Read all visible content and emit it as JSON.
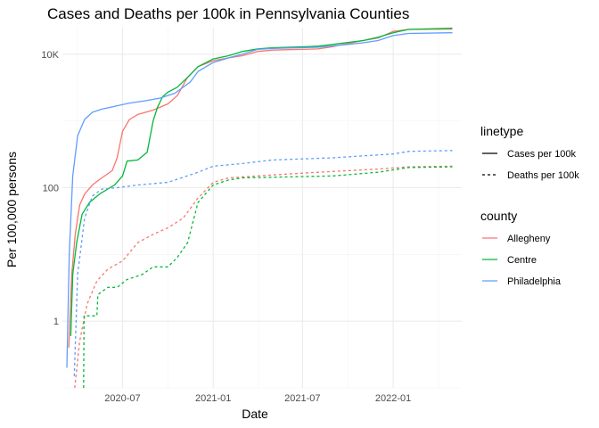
{
  "chart_data": {
    "type": "line",
    "title": "Cases and Deaths per 100k in Pennsylvania Counties",
    "xlabel": "Date",
    "ylabel": "Per 100,000 persons",
    "y_scale": "log10",
    "ylim": [
      0.1,
      25000
    ],
    "xlim": [
      "2020-03-01",
      "2022-05-20"
    ],
    "x_ticks": [
      {
        "date": "2020-07-01",
        "label": "2020-07"
      },
      {
        "date": "2021-01-01",
        "label": "2021-01"
      },
      {
        "date": "2021-07-01",
        "label": "2021-07"
      },
      {
        "date": "2022-01-01",
        "label": "2022-01"
      }
    ],
    "y_ticks": [
      {
        "value": 1,
        "label": "1"
      },
      {
        "value": 100,
        "label": "100"
      },
      {
        "value": 10000,
        "label": "10K"
      }
    ],
    "grid": true,
    "legend_position": "right",
    "legends": [
      {
        "title": "linetype",
        "items": [
          {
            "label": "Cases per 100k",
            "dash": "solid"
          },
          {
            "label": "Deaths per 100k",
            "dash": "dashed"
          }
        ]
      },
      {
        "title": "county",
        "items": [
          {
            "label": "Allegheny",
            "color": "#F8766D"
          },
          {
            "label": "Centre",
            "color": "#00BA38"
          },
          {
            "label": "Philadelphia",
            "color": "#619CFF"
          }
        ]
      }
    ],
    "series": [
      {
        "county": "Allegheny",
        "measure": "Cases per 100k",
        "color": "#F8766D",
        "dash": "solid",
        "points": [
          [
            "2020-03-14",
            0.4
          ],
          [
            "2020-03-20",
            5
          ],
          [
            "2020-03-27",
            20
          ],
          [
            "2020-04-05",
            55
          ],
          [
            "2020-04-15",
            80
          ],
          [
            "2020-05-01",
            110
          ],
          [
            "2020-05-20",
            140
          ],
          [
            "2020-06-10",
            180
          ],
          [
            "2020-06-20",
            280
          ],
          [
            "2020-07-01",
            700
          ],
          [
            "2020-07-15",
            1050
          ],
          [
            "2020-08-01",
            1250
          ],
          [
            "2020-09-01",
            1450
          ],
          [
            "2020-10-01",
            1800
          ],
          [
            "2020-10-20",
            2400
          ],
          [
            "2020-11-10",
            4500
          ],
          [
            "2020-12-01",
            6500
          ],
          [
            "2021-01-01",
            8000
          ],
          [
            "2021-02-01",
            8800
          ],
          [
            "2021-03-01",
            9500
          ],
          [
            "2021-04-01",
            11000
          ],
          [
            "2021-05-01",
            11500
          ],
          [
            "2021-06-01",
            11700
          ],
          [
            "2021-07-01",
            11800
          ],
          [
            "2021-08-01",
            12000
          ],
          [
            "2021-09-01",
            13000
          ],
          [
            "2021-10-01",
            14500
          ],
          [
            "2021-11-01",
            16000
          ],
          [
            "2021-12-01",
            17500
          ],
          [
            "2022-01-01",
            22000
          ],
          [
            "2022-02-01",
            23500
          ],
          [
            "2022-05-01",
            23800
          ]
        ]
      },
      {
        "county": "Centre",
        "measure": "Cases per 100k",
        "color": "#00BA38",
        "dash": "solid",
        "points": [
          [
            "2020-03-18",
            0.6
          ],
          [
            "2020-03-22",
            5
          ],
          [
            "2020-03-30",
            15
          ],
          [
            "2020-04-10",
            40
          ],
          [
            "2020-04-25",
            60
          ],
          [
            "2020-05-15",
            80
          ],
          [
            "2020-06-15",
            110
          ],
          [
            "2020-07-01",
            150
          ],
          [
            "2020-07-10",
            250
          ],
          [
            "2020-08-01",
            260
          ],
          [
            "2020-08-20",
            340
          ],
          [
            "2020-09-01",
            1000
          ],
          [
            "2020-09-10",
            1600
          ],
          [
            "2020-09-20",
            2300
          ],
          [
            "2020-10-01",
            2700
          ],
          [
            "2020-10-20",
            3200
          ],
          [
            "2020-11-10",
            4500
          ],
          [
            "2020-12-01",
            6500
          ],
          [
            "2021-01-01",
            8500
          ],
          [
            "2021-02-01",
            9500
          ],
          [
            "2021-03-01",
            11000
          ],
          [
            "2021-04-01",
            12000
          ],
          [
            "2021-05-01",
            12500
          ],
          [
            "2021-06-01",
            12700
          ],
          [
            "2021-07-01",
            12900
          ],
          [
            "2021-08-01",
            13200
          ],
          [
            "2021-09-01",
            14000
          ],
          [
            "2021-10-01",
            15000
          ],
          [
            "2021-11-01",
            16000
          ],
          [
            "2021-12-01",
            18000
          ],
          [
            "2022-01-01",
            21000
          ],
          [
            "2022-02-01",
            23500
          ],
          [
            "2022-05-01",
            24500
          ]
        ]
      },
      {
        "county": "Philadelphia",
        "measure": "Cases per 100k",
        "color": "#619CFF",
        "dash": "solid",
        "points": [
          [
            "2020-03-10",
            0.2
          ],
          [
            "2020-03-15",
            10
          ],
          [
            "2020-03-22",
            150
          ],
          [
            "2020-04-01",
            600
          ],
          [
            "2020-04-15",
            1050
          ],
          [
            "2020-05-01",
            1350
          ],
          [
            "2020-05-20",
            1500
          ],
          [
            "2020-06-15",
            1650
          ],
          [
            "2020-07-15",
            1850
          ],
          [
            "2020-08-15",
            2000
          ],
          [
            "2020-09-15",
            2200
          ],
          [
            "2020-10-15",
            2600
          ],
          [
            "2020-11-15",
            3800
          ],
          [
            "2020-12-01",
            5500
          ],
          [
            "2021-01-01",
            7500
          ],
          [
            "2021-02-01",
            8800
          ],
          [
            "2021-03-01",
            10000
          ],
          [
            "2021-04-01",
            11800
          ],
          [
            "2021-05-01",
            12200
          ],
          [
            "2021-06-01",
            12400
          ],
          [
            "2021-07-01",
            12500
          ],
          [
            "2021-08-01",
            12700
          ],
          [
            "2021-09-01",
            13300
          ],
          [
            "2021-10-01",
            14000
          ],
          [
            "2021-11-01",
            14800
          ],
          [
            "2021-12-01",
            16000
          ],
          [
            "2022-01-01",
            19000
          ],
          [
            "2022-02-01",
            20500
          ],
          [
            "2022-05-01",
            21000
          ]
        ]
      },
      {
        "county": "Allegheny",
        "measure": "Deaths per 100k",
        "color": "#F8766D",
        "dash": "dashed",
        "points": [
          [
            "2020-03-26",
            0.1
          ],
          [
            "2020-04-05",
            0.5
          ],
          [
            "2020-04-20",
            1.8
          ],
          [
            "2020-05-10",
            4
          ],
          [
            "2020-06-01",
            6
          ],
          [
            "2020-07-01",
            8
          ],
          [
            "2020-08-01",
            15
          ],
          [
            "2020-09-01",
            20
          ],
          [
            "2020-10-01",
            25
          ],
          [
            "2020-11-01",
            35
          ],
          [
            "2020-12-01",
            70
          ],
          [
            "2021-01-01",
            120
          ],
          [
            "2021-02-01",
            140
          ],
          [
            "2021-04-01",
            150
          ],
          [
            "2021-06-01",
            160
          ],
          [
            "2021-08-01",
            170
          ],
          [
            "2021-10-01",
            180
          ],
          [
            "2021-12-01",
            190
          ],
          [
            "2022-02-01",
            205
          ],
          [
            "2022-05-01",
            210
          ]
        ]
      },
      {
        "county": "Centre",
        "measure": "Deaths per 100k",
        "color": "#00BA38",
        "dash": "dashed",
        "points": [
          [
            "2020-04-13",
            0.1
          ],
          [
            "2020-04-14",
            1.2
          ],
          [
            "2020-05-10",
            1.2
          ],
          [
            "2020-05-12",
            2.5
          ],
          [
            "2020-06-01",
            3.2
          ],
          [
            "2020-06-20",
            3.2
          ],
          [
            "2020-07-10",
            4.2
          ],
          [
            "2020-08-10",
            5
          ],
          [
            "2020-09-01",
            6.5
          ],
          [
            "2020-10-01",
            6.5
          ],
          [
            "2020-10-20",
            9
          ],
          [
            "2020-11-10",
            15
          ],
          [
            "2020-12-01",
            60
          ],
          [
            "2021-01-01",
            110
          ],
          [
            "2021-02-01",
            130
          ],
          [
            "2021-03-01",
            140
          ],
          [
            "2021-06-01",
            145
          ],
          [
            "2021-09-01",
            150
          ],
          [
            "2021-12-01",
            170
          ],
          [
            "2022-02-01",
            200
          ],
          [
            "2022-05-01",
            205
          ]
        ]
      },
      {
        "county": "Philadelphia",
        "measure": "Deaths per 100k",
        "color": "#619CFF",
        "dash": "dashed",
        "points": [
          [
            "2020-03-25",
            0.15
          ],
          [
            "2020-04-01",
            5
          ],
          [
            "2020-04-15",
            35
          ],
          [
            "2020-05-01",
            75
          ],
          [
            "2020-05-20",
            95
          ],
          [
            "2020-06-20",
            100
          ],
          [
            "2020-08-01",
            110
          ],
          [
            "2020-10-01",
            120
          ],
          [
            "2020-12-01",
            170
          ],
          [
            "2021-01-01",
            210
          ],
          [
            "2021-03-01",
            230
          ],
          [
            "2021-05-01",
            260
          ],
          [
            "2021-07-01",
            270
          ],
          [
            "2021-09-01",
            280
          ],
          [
            "2021-11-01",
            300
          ],
          [
            "2022-01-01",
            320
          ],
          [
            "2022-02-01",
            350
          ],
          [
            "2022-05-01",
            360
          ]
        ]
      }
    ]
  }
}
